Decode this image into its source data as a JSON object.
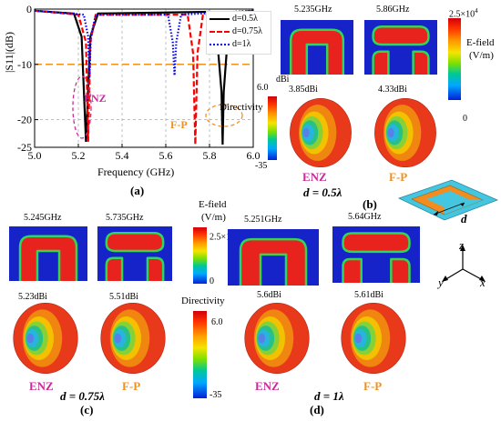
{
  "colors": {
    "field_bg": "#1523c8",
    "field_red": "#e8231e",
    "field_green": "#2fd65a",
    "enz": "#cc2a9a",
    "fp": "#f0901e",
    "substrate": "#45c6e0",
    "ring": "#f08d1e",
    "line_05": "#000000",
    "line_075": "#ff0000",
    "line_1": "#0000ff",
    "ref_line": "#f0901e"
  },
  "panel_a": {
    "label": "(a)",
    "ylabel": "|S11|(dB)",
    "xlabel": "Frequency (GHz)",
    "annotation_enz": "ENZ",
    "annotation_fp": "F-P",
    "legend": [
      "d=0.5λ",
      "d=0.75λ",
      "d=1λ"
    ]
  },
  "chart_data": {
    "type": "line",
    "xlabel": "Frequency (GHz)",
    "ylabel": "|S11|(dB)",
    "xlim": [
      5.0,
      6.0
    ],
    "ylim": [
      -25,
      0
    ],
    "xticks": [
      "5.0",
      "5.2",
      "5.4",
      "5.6",
      "5.8",
      "6.0"
    ],
    "yticks": [
      "0",
      "-10",
      "-20",
      "-25"
    ],
    "reference_y": -10,
    "series": [
      {
        "name": "d=0.5λ",
        "color": "#000000",
        "style": "solid",
        "x": [
          5.0,
          5.18,
          5.215,
          5.235,
          5.255,
          5.29,
          5.8,
          5.83,
          5.855,
          5.86,
          5.865,
          5.89,
          6.0
        ],
        "y": [
          -0.3,
          -0.8,
          -5,
          -24,
          -5,
          -0.8,
          -0.5,
          -3,
          -15,
          -24.5,
          -15,
          -1.5,
          -0.3
        ]
      },
      {
        "name": "d=0.75λ",
        "color": "#ff0000",
        "style": "dashed",
        "x": [
          5.0,
          5.2,
          5.235,
          5.245,
          5.255,
          5.28,
          5.7,
          5.725,
          5.735,
          5.745,
          5.77,
          6.0
        ],
        "y": [
          -0.3,
          -1,
          -6,
          -24,
          -6,
          -1,
          -1,
          -8,
          -24.5,
          -8,
          -1,
          -0.3
        ]
      },
      {
        "name": "d=1λ",
        "color": "#0000ff",
        "style": "dotted",
        "x": [
          5.0,
          5.225,
          5.245,
          5.251,
          5.257,
          5.28,
          5.61,
          5.632,
          5.64,
          5.648,
          5.67,
          6.0
        ],
        "y": [
          -0.3,
          -1,
          -5,
          -12.5,
          -5,
          -1,
          -1,
          -6,
          -12,
          -6,
          -1,
          -0.3
        ]
      }
    ]
  },
  "panel_b": {
    "label": "(b)",
    "freq_left": "5.235GHz",
    "freq_right": "5.86GHz",
    "dbi_left": "3.85dBi",
    "dbi_right": "4.33dBi",
    "efield_max": "2.5×10",
    "efield_exp": "4",
    "efield_title_1": "E-field",
    "efield_title_2": "(V/m)",
    "efield_min": "0",
    "dir_unit": "dBi",
    "dir_max": "6.0",
    "dir_title": "Directivity",
    "dir_min": "-35",
    "enz": "ENZ",
    "fp": "F-P",
    "d_label": "d = 0.5λ"
  },
  "panel_c": {
    "label": "(c)",
    "freq_left": "5.245GHz",
    "freq_right": "5.735GHz",
    "dbi_left": "5.23dBi",
    "dbi_right": "5.51dBi",
    "enz": "ENZ",
    "fp": "F-P",
    "d_label": "d = 0.75λ"
  },
  "panel_d": {
    "label": "(d)",
    "freq_left": "5.251GHz",
    "freq_right": "5.64GHz",
    "dbi_left": "5.6dBi",
    "dbi_right": "5.61dBi",
    "enz": "ENZ",
    "fp": "F-P",
    "d_label": "d = 1λ"
  },
  "center_scales": {
    "efield_title_1": "E-field",
    "efield_title_2": "(V/m)",
    "efield_max": "2.5×10",
    "efield_exp": "4",
    "efield_min": "0",
    "dir_title": "Directivity",
    "dir_max": "6.0",
    "dir_min": "-35"
  },
  "geometry_inset": {
    "d_label": "d"
  },
  "axes": {
    "z": "z",
    "y": "y",
    "x": "x"
  }
}
